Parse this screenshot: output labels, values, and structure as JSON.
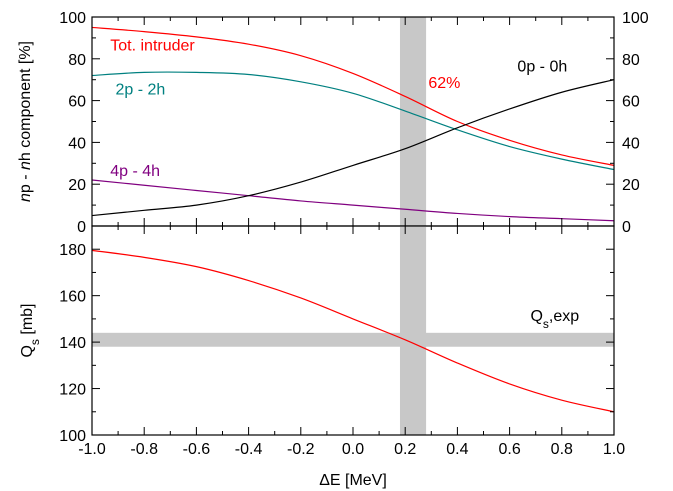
{
  "chart_data": [
    {
      "type": "line",
      "panel": "top",
      "ylabel_parts": [
        "n",
        "p - ",
        "n",
        "h component [%]"
      ],
      "xlim": [
        -1.0,
        1.0
      ],
      "ylim": [
        0,
        100
      ],
      "yticks": [
        0,
        20,
        40,
        60,
        80,
        100
      ],
      "yticks_right": [
        0,
        20,
        40,
        60,
        80,
        100
      ],
      "shaded_band": {
        "axis": "x",
        "from": 0.18,
        "to": 0.28,
        "color": "#c8c8c8"
      },
      "annotation": {
        "text": "62%",
        "x": 0.35,
        "y": 66,
        "color": "#ff0000"
      },
      "series": [
        {
          "name": "Tot. intruder",
          "color": "#ff0000",
          "label_pos": {
            "x": -0.93,
            "y": 84
          },
          "x": [
            -1.0,
            -0.8,
            -0.6,
            -0.4,
            -0.2,
            0.0,
            0.2,
            0.4,
            0.6,
            0.8,
            1.0
          ],
          "y": [
            95,
            93,
            90.5,
            87,
            81.5,
            73,
            62,
            50,
            41,
            34,
            29
          ]
        },
        {
          "name": "2p - 2h",
          "color": "#008080",
          "label_pos": {
            "x": -0.91,
            "y": 63
          },
          "x": [
            -1.0,
            -0.8,
            -0.6,
            -0.4,
            -0.2,
            0.0,
            0.2,
            0.4,
            0.6,
            0.8,
            1.0
          ],
          "y": [
            72,
            73.5,
            73.5,
            72.5,
            69,
            63.5,
            55,
            46,
            38,
            32,
            27
          ]
        },
        {
          "name": "4p - 4h",
          "color": "#800080",
          "label_pos": {
            "x": -0.93,
            "y": 24
          },
          "x": [
            -1.0,
            -0.8,
            -0.6,
            -0.4,
            -0.2,
            0.0,
            0.2,
            0.4,
            0.6,
            0.8,
            1.0
          ],
          "y": [
            22,
            19.5,
            17,
            14.5,
            12,
            10,
            8,
            6,
            4.5,
            3.5,
            2.5
          ]
        },
        {
          "name": "0p - 0h",
          "color": "#000000",
          "label_pos": {
            "x": 0.63,
            "y": 74
          },
          "x": [
            -1.0,
            -0.8,
            -0.6,
            -0.4,
            -0.2,
            0.0,
            0.2,
            0.4,
            0.6,
            0.8,
            1.0
          ],
          "y": [
            5,
            7.5,
            10,
            14.5,
            21,
            29,
            37,
            47,
            56,
            64,
            70
          ]
        }
      ]
    },
    {
      "type": "line",
      "panel": "bottom",
      "xlabel": "ΔE [MeV]",
      "ylabel_parts": [
        "Q",
        "s",
        " [mb]"
      ],
      "xlim": [
        -1.0,
        1.0
      ],
      "ylim": [
        100,
        190
      ],
      "xticks": [
        "-1.0",
        "-0.8",
        "-0.6",
        "-0.4",
        "-0.2",
        "0.0",
        "0.2",
        "0.4",
        "0.6",
        "0.8",
        "1.0"
      ],
      "yticks": [
        100,
        120,
        140,
        160,
        180
      ],
      "shaded_band": {
        "axis": "x",
        "from": 0.18,
        "to": 0.28,
        "color": "#c8c8c8"
      },
      "hband": {
        "axis": "y",
        "from": 138,
        "to": 144,
        "color": "#c8c8c8"
      },
      "hband_label": {
        "parts": [
          "Q",
          "s",
          ",exp"
        ],
        "x": 0.68,
        "y": 149
      },
      "series": [
        {
          "name": "",
          "color": "#ff0000",
          "x": [
            -1.0,
            -0.8,
            -0.6,
            -0.4,
            -0.2,
            0.0,
            0.2,
            0.4,
            0.6,
            0.8,
            1.0
          ],
          "y": [
            179.5,
            176.5,
            172.5,
            166.5,
            159,
            150,
            141,
            131,
            122,
            115,
            110
          ]
        }
      ]
    }
  ]
}
